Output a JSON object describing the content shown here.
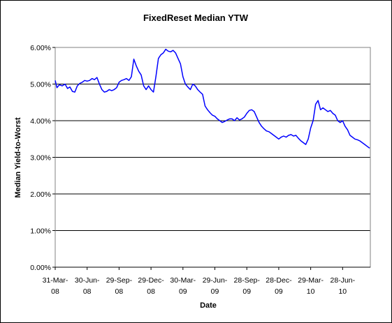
{
  "chart_data": {
    "type": "line",
    "title": "FixedReset Median YTW",
    "xlabel": "Date",
    "ylabel": "Median Yield-to-Worst",
    "ylim": [
      0,
      6
    ],
    "yticks": [
      "0.00%",
      "1.00%",
      "2.00%",
      "3.00%",
      "4.00%",
      "5.00%",
      "6.00%"
    ],
    "yticks_values": [
      0,
      1,
      2,
      3,
      4,
      5,
      6
    ],
    "xticks": [
      {
        "line1": "31-Mar-",
        "line2": "08"
      },
      {
        "line1": "30-Jun-",
        "line2": "08"
      },
      {
        "line1": "29-Sep-",
        "line2": "08"
      },
      {
        "line1": "29-Dec-",
        "line2": "08"
      },
      {
        "line1": "30-Mar-",
        "line2": "09"
      },
      {
        "line1": "29-Jun-",
        "line2": "09"
      },
      {
        "line1": "28-Sep-",
        "line2": "09"
      },
      {
        "line1": "28-Dec-",
        "line2": "09"
      },
      {
        "line1": "29-Mar-",
        "line2": "10"
      },
      {
        "line1": "28-Jun-",
        "line2": "10"
      }
    ],
    "xticks_dates": [
      "2008-03-31",
      "2008-06-30",
      "2008-09-29",
      "2008-12-29",
      "2009-03-30",
      "2009-06-29",
      "2009-09-28",
      "2009-12-28",
      "2010-03-29",
      "2010-06-28"
    ],
    "x_range_dates": [
      "2008-03-31",
      "2010-09-15"
    ],
    "grid": true,
    "line_color": "#0000ff",
    "series": [
      {
        "x": [
          "2008-03-31",
          "2008-04-05",
          "2008-04-12",
          "2008-04-20",
          "2008-04-28",
          "2008-05-05",
          "2008-05-12",
          "2008-05-19",
          "2008-05-26",
          "2008-06-02",
          "2008-06-09",
          "2008-06-16",
          "2008-06-23",
          "2008-06-30",
          "2008-07-07",
          "2008-07-14",
          "2008-07-21",
          "2008-07-28",
          "2008-08-04",
          "2008-08-11",
          "2008-08-18",
          "2008-08-25",
          "2008-09-01",
          "2008-09-08",
          "2008-09-15",
          "2008-09-22",
          "2008-09-29",
          "2008-10-06",
          "2008-10-13",
          "2008-10-20",
          "2008-10-27",
          "2008-11-03",
          "2008-11-10",
          "2008-11-17",
          "2008-11-24",
          "2008-12-01",
          "2008-12-08",
          "2008-12-15",
          "2008-12-22",
          "2008-12-29",
          "2009-01-05",
          "2009-01-12",
          "2009-01-19",
          "2009-01-26",
          "2009-02-02",
          "2009-02-09",
          "2009-02-16",
          "2009-02-23",
          "2009-03-02",
          "2009-03-09",
          "2009-03-16",
          "2009-03-23",
          "2009-03-30",
          "2009-04-06",
          "2009-04-13",
          "2009-04-20",
          "2009-04-27",
          "2009-05-04",
          "2009-05-11",
          "2009-05-18",
          "2009-05-25",
          "2009-06-01",
          "2009-06-08",
          "2009-06-15",
          "2009-06-22",
          "2009-06-29",
          "2009-07-06",
          "2009-07-13",
          "2009-07-20",
          "2009-07-27",
          "2009-08-03",
          "2009-08-10",
          "2009-08-17",
          "2009-08-24",
          "2009-08-31",
          "2009-09-07",
          "2009-09-14",
          "2009-09-21",
          "2009-09-28",
          "2009-10-05",
          "2009-10-12",
          "2009-10-19",
          "2009-10-26",
          "2009-11-02",
          "2009-11-09",
          "2009-11-16",
          "2009-11-23",
          "2009-11-30",
          "2009-12-07",
          "2009-12-14",
          "2009-12-21",
          "2009-12-28",
          "2010-01-04",
          "2010-01-11",
          "2010-01-18",
          "2010-01-25",
          "2010-02-01",
          "2010-02-08",
          "2010-02-15",
          "2010-02-22",
          "2010-03-01",
          "2010-03-08",
          "2010-03-15",
          "2010-03-22",
          "2010-03-29",
          "2010-04-05",
          "2010-04-12",
          "2010-04-19",
          "2010-04-26",
          "2010-05-03",
          "2010-05-10",
          "2010-05-17",
          "2010-05-24",
          "2010-05-31",
          "2010-06-07",
          "2010-06-14",
          "2010-06-21",
          "2010-06-28",
          "2010-07-05",
          "2010-07-12",
          "2010-07-19",
          "2010-07-26",
          "2010-08-02",
          "2010-08-09",
          "2010-08-16",
          "2010-08-23",
          "2010-08-30",
          "2010-09-06",
          "2010-09-13"
        ],
        "y": [
          5.1,
          4.9,
          4.98,
          4.95,
          5.0,
          4.88,
          4.92,
          4.8,
          4.78,
          4.95,
          5.02,
          5.05,
          5.1,
          5.08,
          5.1,
          5.15,
          5.12,
          5.18,
          5.0,
          4.85,
          4.78,
          4.8,
          4.85,
          4.82,
          4.85,
          4.9,
          5.05,
          5.1,
          5.12,
          5.15,
          5.1,
          5.2,
          5.68,
          5.5,
          5.35,
          5.25,
          4.95,
          4.85,
          4.95,
          4.85,
          4.78,
          5.2,
          5.7,
          5.8,
          5.85,
          5.95,
          5.9,
          5.88,
          5.92,
          5.85,
          5.7,
          5.55,
          5.2,
          5.0,
          4.92,
          4.85,
          5.0,
          4.95,
          4.85,
          4.78,
          4.72,
          4.4,
          4.3,
          4.22,
          4.15,
          4.12,
          4.05,
          4.0,
          3.95,
          3.98,
          4.02,
          4.05,
          4.05,
          4.0,
          4.08,
          4.02,
          4.05,
          4.1,
          4.2,
          4.28,
          4.3,
          4.25,
          4.1,
          3.95,
          3.85,
          3.78,
          3.72,
          3.7,
          3.65,
          3.6,
          3.55,
          3.5,
          3.55,
          3.58,
          3.55,
          3.6,
          3.62,
          3.58,
          3.6,
          3.52,
          3.45,
          3.4,
          3.35,
          3.5,
          3.8,
          4.0,
          4.45,
          4.55,
          4.3,
          4.35,
          4.3,
          4.25,
          4.28,
          4.2,
          4.15,
          4.0,
          3.95,
          4.0,
          3.85,
          3.75,
          3.6,
          3.55,
          3.5,
          3.48,
          3.45,
          3.4,
          3.35,
          3.3,
          3.25
        ]
      }
    ]
  }
}
